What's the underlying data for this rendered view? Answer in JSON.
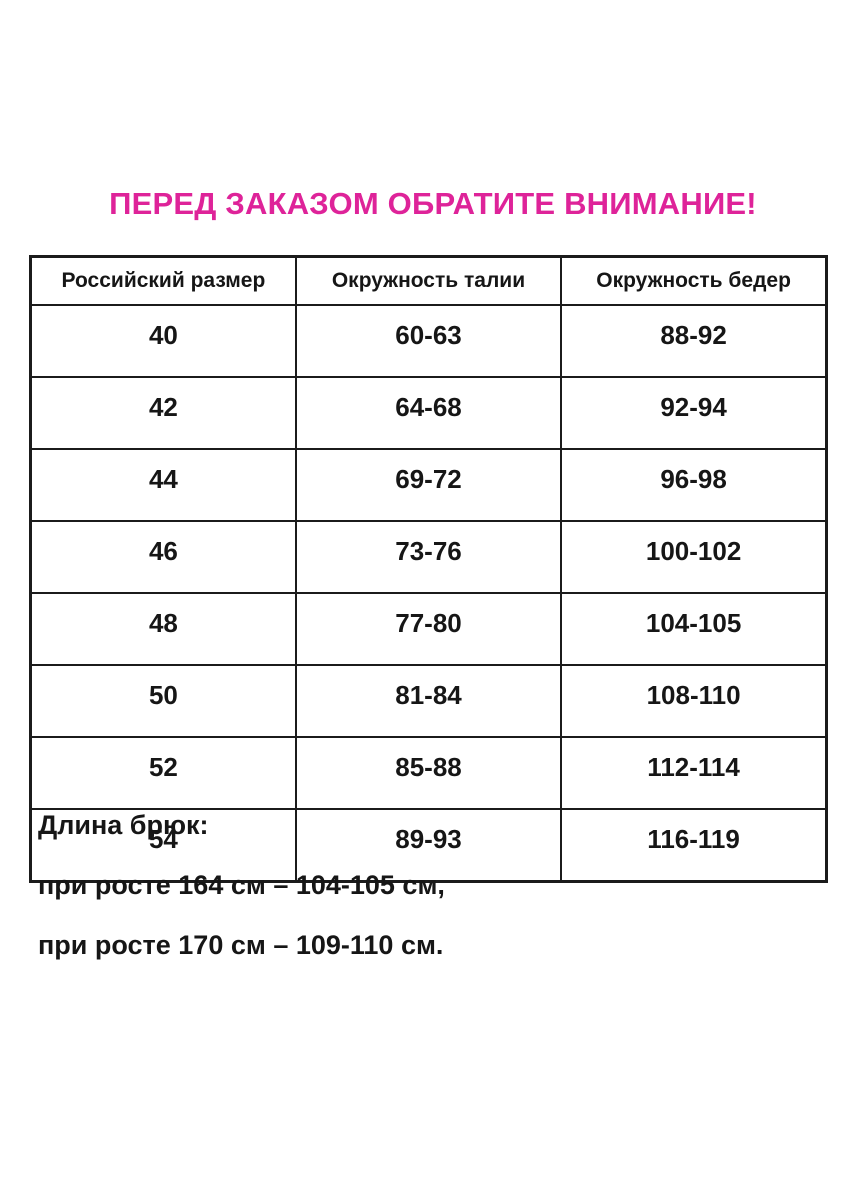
{
  "title": {
    "text": "ПЕРЕД ЗАКАЗОМ ОБРАТИТЕ ВНИМАНИЕ!",
    "color": "#de2399"
  },
  "size_table": {
    "headers": [
      "Российский размер",
      "Окружность талии",
      "Окружность бедер"
    ],
    "rows": [
      [
        "40",
        "60-63",
        "88-92"
      ],
      [
        "42",
        "64-68",
        "92-94"
      ],
      [
        "44",
        "69-72",
        "96-98"
      ],
      [
        "46",
        "73-76",
        "100-102"
      ],
      [
        "48",
        "77-80",
        "104-105"
      ],
      [
        "50",
        "81-84",
        "108-110"
      ],
      [
        "52",
        "85-88",
        "112-114"
      ],
      [
        "54",
        "89-93",
        "116-119"
      ]
    ]
  },
  "pants_length": {
    "heading": "Длина брюк:",
    "note_164": "при росте 164 см – 104-105 см,",
    "note_170": "при росте 170 см – 109-110 см."
  },
  "colors": {
    "title_accent": "#de2399",
    "text": "#161616",
    "table_border": "#1b1b1b",
    "background": "#ffffff"
  }
}
